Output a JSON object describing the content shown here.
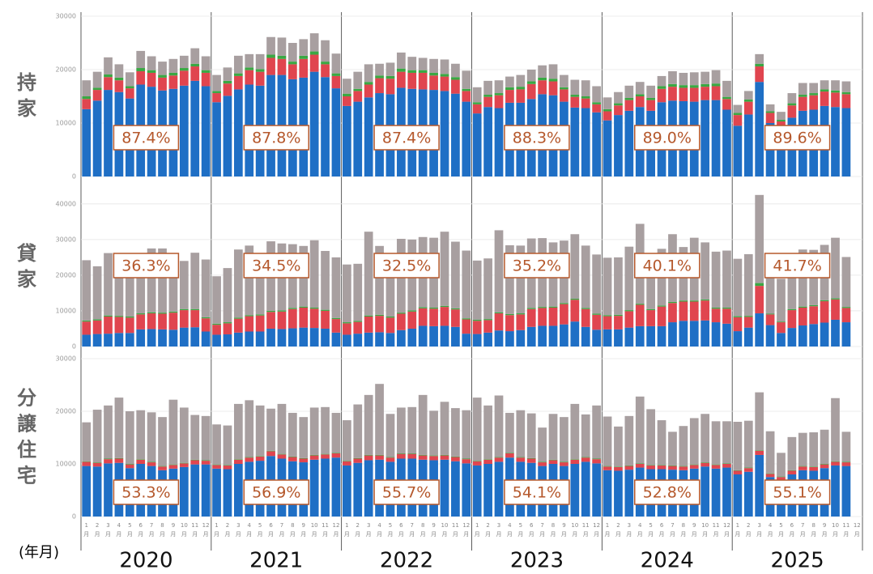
{
  "chart_data": [
    {
      "type": "bar",
      "stacked": true,
      "y_label": "持家",
      "ylim": [
        0,
        30000
      ],
      "yticks": [
        0,
        10000,
        20000,
        30000
      ],
      "grid": true,
      "annotations": [
        "87.4%",
        "87.8%",
        "87.4%",
        "88.3%",
        "89.0%",
        "89.6%"
      ],
      "series": [
        {
          "color": "#1f6fc5",
          "values": [
            12600,
            14200,
            16200,
            15800,
            14600,
            17200,
            16800,
            16100,
            16400,
            17000,
            17900,
            16900,
            13900,
            15100,
            16300,
            17200,
            17000,
            19000,
            19000,
            18200,
            18500,
            19600,
            18600,
            16500,
            13200,
            14000,
            14800,
            15600,
            15400,
            16600,
            16400,
            16300,
            16200,
            16000,
            15500,
            14000,
            11800,
            13000,
            12800,
            13800,
            13800,
            14500,
            15400,
            15200,
            14000,
            12900,
            12800,
            12000,
            10500,
            11500,
            12300,
            13000,
            12300,
            13900,
            14200,
            14100,
            14000,
            14300,
            14300,
            12500,
            9500,
            11600,
            17700,
            10000,
            8500,
            11000,
            12300,
            12500,
            13200,
            13000,
            12800,
            null
          ]
        },
        {
          "color": "#e0454f",
          "values": [
            1900,
            2000,
            2400,
            2200,
            1900,
            2500,
            2600,
            2400,
            2500,
            2800,
            2700,
            2500,
            1700,
            2300,
            2500,
            2700,
            2600,
            3200,
            3000,
            2800,
            3500,
            3200,
            2400,
            2300,
            1800,
            2000,
            2400,
            2800,
            2900,
            3000,
            3000,
            3100,
            2700,
            2700,
            2600,
            2000,
            1700,
            1900,
            2400,
            2400,
            2500,
            2800,
            2600,
            2600,
            2300,
            2000,
            1800,
            1500,
            1700,
            1800,
            2000,
            2000,
            2000,
            2500,
            2600,
            2500,
            2600,
            2500,
            2600,
            2000,
            2000,
            2400,
            2900,
            1900,
            1800,
            2300,
            2600,
            2700,
            2700,
            2700,
            2600,
            null
          ]
        },
        {
          "color": "#3aa843",
          "values": [
            500,
            400,
            500,
            500,
            400,
            600,
            500,
            500,
            500,
            500,
            500,
            500,
            400,
            500,
            500,
            500,
            500,
            600,
            600,
            500,
            600,
            600,
            500,
            500,
            500,
            400,
            500,
            500,
            500,
            600,
            500,
            500,
            500,
            500,
            500,
            400,
            400,
            400,
            400,
            500,
            500,
            500,
            500,
            500,
            400,
            400,
            400,
            400,
            400,
            400,
            400,
            400,
            400,
            500,
            500,
            500,
            500,
            500,
            500,
            400,
            400,
            400,
            500,
            300,
            300,
            400,
            400,
            400,
            400,
            400,
            400,
            null
          ]
        },
        {
          "color": "#a89fa0",
          "values": [
            3000,
            3000,
            3200,
            2500,
            2600,
            3200,
            2600,
            2500,
            2600,
            2300,
            2900,
            2600,
            3000,
            2500,
            3300,
            2500,
            2800,
            3300,
            3400,
            3500,
            3100,
            3400,
            4000,
            3700,
            2800,
            3200,
            3300,
            2200,
            2500,
            3000,
            2500,
            2300,
            2600,
            2700,
            2500,
            3400,
            2800,
            2600,
            2400,
            2000,
            2200,
            2200,
            2300,
            2700,
            2300,
            2800,
            3000,
            3000,
            2200,
            2100,
            2300,
            2300,
            2300,
            1900,
            2400,
            2300,
            2400,
            2300,
            2500,
            3000,
            1500,
            1600,
            1800,
            1300,
            1500,
            1900,
            2200,
            1900,
            1700,
            1900,
            2000,
            null
          ]
        }
      ]
    },
    {
      "type": "bar",
      "stacked": true,
      "y_label": "貸家",
      "ylim": [
        0,
        44500
      ],
      "yticks": [
        0,
        10000,
        20000,
        30000,
        40000
      ],
      "grid": true,
      "annotations": [
        "36.3%",
        "34.5%",
        "32.5%",
        "35.2%",
        "40.1%",
        "41.7%"
      ],
      "series": [
        {
          "color": "#1f6fc5",
          "values": [
            3300,
            3500,
            3600,
            3800,
            3800,
            4800,
            4900,
            4800,
            4700,
            5300,
            5400,
            4200,
            3300,
            3400,
            3900,
            4200,
            4200,
            5000,
            4900,
            5100,
            5300,
            5200,
            5000,
            3900,
            3300,
            3600,
            3900,
            4000,
            3800,
            4600,
            5000,
            5800,
            5700,
            5800,
            5500,
            3600,
            3500,
            3900,
            4500,
            4300,
            4600,
            5500,
            5800,
            5800,
            6200,
            7000,
            5500,
            4700,
            4800,
            4800,
            5300,
            5700,
            5700,
            5700,
            6800,
            7200,
            7200,
            7300,
            6800,
            6400,
            4300,
            5300,
            9300,
            6000,
            3800,
            5200,
            5900,
            6300,
            6700,
            7500,
            6800,
            null
          ]
        },
        {
          "color": "#e0454f",
          "values": [
            3700,
            3800,
            4800,
            4500,
            4300,
            4200,
            4400,
            4400,
            4800,
            4900,
            4800,
            3700,
            2800,
            3100,
            3900,
            4300,
            4500,
            4700,
            4900,
            5400,
            5600,
            5400,
            5000,
            3800,
            3200,
            3300,
            4500,
            4600,
            4300,
            4600,
            4800,
            4900,
            4900,
            5300,
            4900,
            4000,
            3700,
            3500,
            4800,
            4500,
            4400,
            5000,
            5000,
            5100,
            5700,
            6100,
            5000,
            4200,
            3700,
            3800,
            4600,
            6000,
            4500,
            5500,
            5400,
            5400,
            5400,
            5600,
            3800,
            4200,
            3900,
            3000,
            7700,
            3000,
            3000,
            5000,
            5000,
            5000,
            6000,
            5700,
            4000,
            null
          ]
        },
        {
          "color": "#3aa843",
          "values": [
            300,
            300,
            300,
            300,
            300,
            300,
            300,
            300,
            300,
            300,
            300,
            300,
            300,
            300,
            300,
            300,
            300,
            300,
            300,
            300,
            300,
            300,
            300,
            300,
            300,
            300,
            300,
            300,
            300,
            300,
            300,
            300,
            300,
            300,
            300,
            300,
            300,
            300,
            300,
            300,
            300,
            300,
            300,
            300,
            300,
            300,
            300,
            300,
            300,
            300,
            300,
            300,
            300,
            300,
            300,
            300,
            300,
            300,
            300,
            300,
            300,
            300,
            800,
            200,
            200,
            300,
            300,
            300,
            300,
            300,
            300,
            null
          ]
        },
        {
          "color": "#a89fa0",
          "values": [
            16900,
            14900,
            17500,
            13400,
            15900,
            16700,
            17900,
            18000,
            16200,
            13500,
            15800,
            16200,
            13300,
            15200,
            19100,
            19500,
            17000,
            19500,
            18800,
            17900,
            17000,
            18900,
            16500,
            17000,
            16200,
            16000,
            23500,
            19300,
            15800,
            20700,
            19900,
            19700,
            19600,
            20800,
            18700,
            19000,
            16600,
            17000,
            23000,
            19300,
            19000,
            19500,
            19300,
            18000,
            17500,
            18100,
            17500,
            16600,
            16100,
            16100,
            17800,
            22400,
            15400,
            15900,
            19000,
            15000,
            17600,
            16000,
            15700,
            16000,
            16100,
            17300,
            24700,
            15300,
            12000,
            14000,
            16000,
            15500,
            15500,
            17000,
            14000,
            null
          ]
        }
      ]
    },
    {
      "type": "bar",
      "stacked": true,
      "y_label": "分譲住宅",
      "ylim": [
        0,
        30000
      ],
      "yticks": [
        0,
        10000,
        20000,
        30000
      ],
      "grid": true,
      "annotations": [
        "53.3%",
        "56.9%",
        "55.7%",
        "54.1%",
        "52.8%",
        "55.1%"
      ],
      "x_label": "(年月)",
      "year_labels": [
        "2020",
        "2021",
        "2022",
        "2023",
        "2024",
        "2025"
      ],
      "categories": [
        "1月",
        "2月",
        "3月",
        "4月",
        "5月",
        "6月",
        "7月",
        "8月",
        "9月",
        "10月",
        "11月",
        "12月",
        "1月",
        "2月",
        "3月",
        "4月",
        "5月",
        "6月",
        "7月",
        "8月",
        "9月",
        "10月",
        "11月",
        "12月",
        "1月",
        "2月",
        "3月",
        "4月",
        "5月",
        "6月",
        "7月",
        "8月",
        "9月",
        "10月",
        "11月",
        "12月",
        "1月",
        "2月",
        "3月",
        "4月",
        "5月",
        "6月",
        "7月",
        "8月",
        "9月",
        "10月",
        "11月",
        "12月",
        "1月",
        "2月",
        "3月",
        "4月",
        "5月",
        "6月",
        "7月",
        "8月",
        "9月",
        "10月",
        "11月",
        "12月",
        "1月",
        "2月",
        "3月",
        "4月",
        "5月",
        "6月",
        "7月",
        "8月",
        "9月",
        "10月",
        "11月",
        "12月"
      ],
      "series": [
        {
          "color": "#1f6fc5",
          "values": [
            9600,
            9500,
            10100,
            10200,
            9200,
            10000,
            9600,
            8800,
            9100,
            9400,
            9900,
            9900,
            9100,
            9000,
            10000,
            10400,
            10600,
            11500,
            11000,
            10500,
            10300,
            10800,
            11000,
            11200,
            9700,
            10200,
            10700,
            10800,
            10400,
            11000,
            11000,
            10800,
            10700,
            10800,
            10500,
            10100,
            9700,
            10000,
            10400,
            11200,
            10400,
            10200,
            9600,
            10000,
            9600,
            10000,
            10400,
            10100,
            8800,
            8700,
            8900,
            9300,
            9000,
            9000,
            8900,
            8800,
            9100,
            9500,
            9100,
            9300,
            8000,
            8500,
            11700,
            7500,
            7000,
            8000,
            8800,
            8700,
            9200,
            9700,
            9600,
            null
          ]
        },
        {
          "color": "#e0454f",
          "values": [
            800,
            700,
            800,
            800,
            700,
            800,
            700,
            700,
            700,
            700,
            800,
            700,
            700,
            700,
            800,
            800,
            800,
            900,
            800,
            800,
            700,
            800,
            800,
            800,
            800,
            800,
            900,
            800,
            800,
            900,
            900,
            800,
            800,
            800,
            800,
            800,
            800,
            800,
            800,
            800,
            800,
            800,
            700,
            700,
            700,
            800,
            800,
            800,
            700,
            700,
            700,
            700,
            700,
            700,
            700,
            700,
            700,
            700,
            700,
            700,
            700,
            700,
            800,
            600,
            500,
            700,
            700,
            700,
            700,
            700,
            700,
            null
          ]
        },
        {
          "color": "#3aa843",
          "values": [
            100,
            100,
            100,
            100,
            100,
            100,
            100,
            100,
            100,
            100,
            100,
            100,
            100,
            100,
            100,
            100,
            100,
            100,
            100,
            100,
            100,
            100,
            100,
            100,
            100,
            100,
            100,
            100,
            100,
            100,
            100,
            100,
            100,
            100,
            100,
            100,
            100,
            100,
            100,
            100,
            100,
            100,
            100,
            100,
            100,
            100,
            100,
            100,
            100,
            100,
            100,
            100,
            100,
            100,
            100,
            100,
            100,
            100,
            100,
            100,
            100,
            100,
            100,
            100,
            100,
            100,
            100,
            100,
            100,
            100,
            100,
            null
          ]
        },
        {
          "color": "#a89fa0",
          "values": [
            7400,
            10000,
            10100,
            11500,
            10000,
            9300,
            9400,
            9300,
            12300,
            10500,
            8500,
            8400,
            7600,
            7500,
            10500,
            10800,
            9600,
            8000,
            9500,
            8300,
            7800,
            9000,
            8900,
            7600,
            7700,
            10200,
            11400,
            13500,
            8200,
            8700,
            8800,
            11400,
            8500,
            10100,
            9200,
            9200,
            12000,
            10200,
            11700,
            7600,
            8900,
            8500,
            6500,
            8700,
            8500,
            10500,
            8100,
            10100,
            9400,
            7600,
            9400,
            12700,
            10600,
            8500,
            6400,
            7600,
            8800,
            9200,
            8200,
            8000,
            9200,
            8900,
            11000,
            8000,
            4500,
            6300,
            6300,
            6500,
            6500,
            12000,
            5700,
            null
          ]
        }
      ]
    }
  ]
}
